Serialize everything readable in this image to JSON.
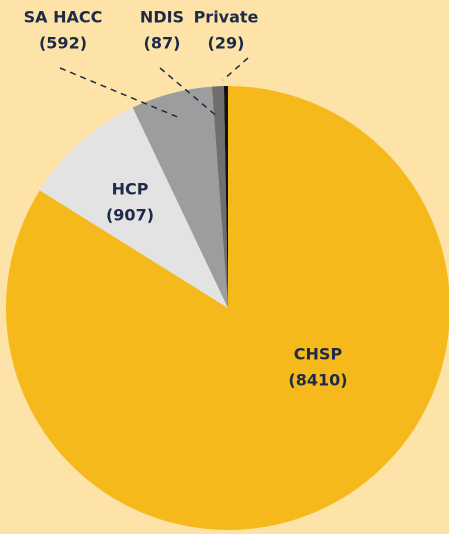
{
  "chart_data": {
    "type": "pie",
    "categories": [
      "CHSP",
      "HCP",
      "SA HACC",
      "NDIS",
      "Private"
    ],
    "values": [
      8410,
      907,
      592,
      87,
      29
    ],
    "value_labels": [
      "(8410)",
      "(907)",
      "(592)",
      "(87)",
      "(29)"
    ],
    "colors": [
      "#f6b91c",
      "#e3e3e4",
      "#9d9d9e",
      "#6f6f70",
      "#111111"
    ]
  }
}
